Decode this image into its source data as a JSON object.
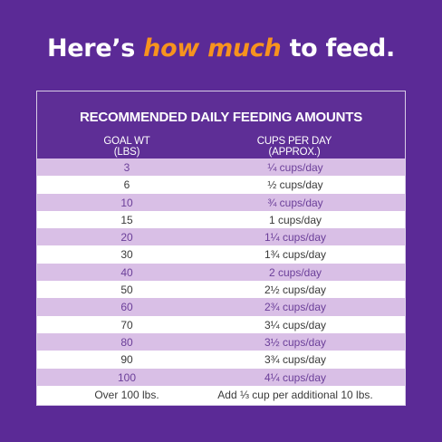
{
  "headline": {
    "prefix": "Here’s ",
    "highlight": "how much",
    "suffix": " to feed."
  },
  "colors": {
    "background": "#5b2a96",
    "header": "#5e2e96",
    "highlight": "#f7931e",
    "row_shade": "#d9bfe6"
  },
  "table": {
    "title": "RECOMMENDED DAILY FEEDING AMOUNTS",
    "columns": [
      "GOAL WT (LBS)",
      "CUPS PER DAY (APPROX.)"
    ],
    "rows": [
      {
        "weight": "3",
        "cups": "¼ cups/day"
      },
      {
        "weight": "6",
        "cups": "½ cups/day"
      },
      {
        "weight": "10",
        "cups": "¾ cups/day"
      },
      {
        "weight": "15",
        "cups": "1 cups/day"
      },
      {
        "weight": "20",
        "cups": "1¼ cups/day"
      },
      {
        "weight": "30",
        "cups": "1¾ cups/day"
      },
      {
        "weight": "40",
        "cups": "2 cups/day"
      },
      {
        "weight": "50",
        "cups": "2½ cups/day"
      },
      {
        "weight": "60",
        "cups": "2¾ cups/day"
      },
      {
        "weight": "70",
        "cups": "3¼ cups/day"
      },
      {
        "weight": "80",
        "cups": "3½ cups/day"
      },
      {
        "weight": "90",
        "cups": "3¾ cups/day"
      },
      {
        "weight": "100",
        "cups": "4¼ cups/day"
      },
      {
        "weight": "Over 100 lbs.",
        "cups": "Add ⅓ cup per additional 10 lbs."
      }
    ]
  }
}
